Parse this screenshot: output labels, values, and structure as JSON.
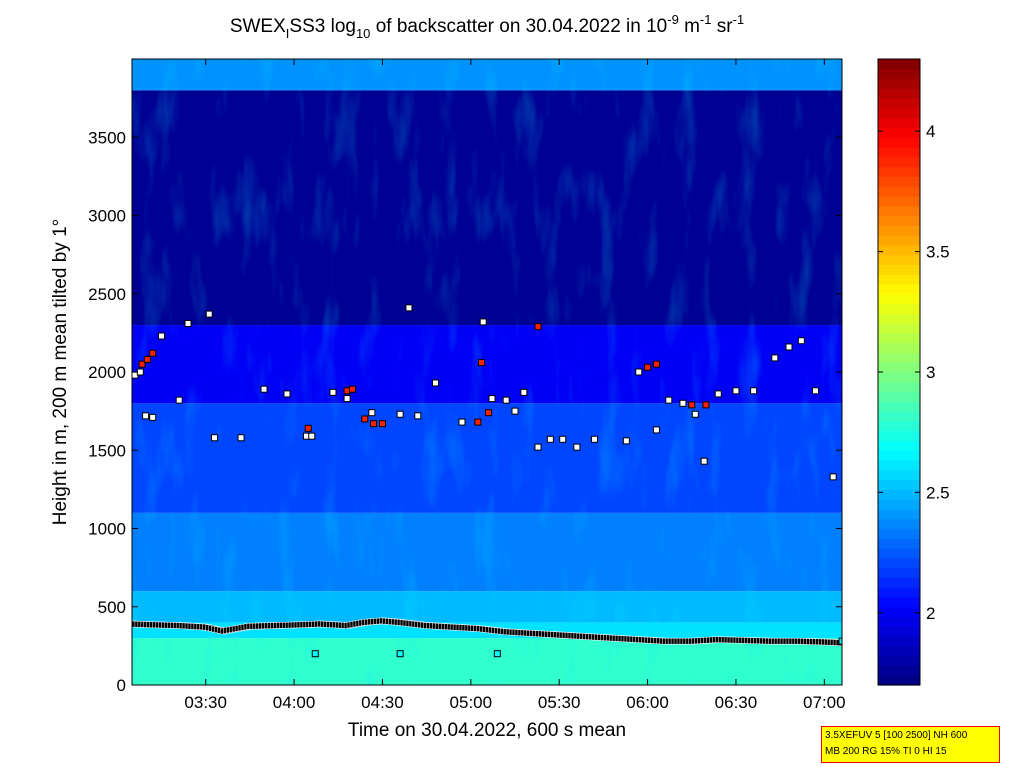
{
  "chart_data": {
    "type": "heatmap",
    "title": {
      "p1": "SWEX",
      "sub1": "I",
      "p2": "SS3 log",
      "sub2": "10",
      "p3": " of backscatter on 30.04.2022 in 10",
      "sup1": "-9",
      "p4": " m",
      "sup2": "-1",
      "p5": " sr",
      "sup3": "-1"
    },
    "xlabel": "Time on 30.04.2022, 600 s mean",
    "ylabel": "Height in m, 200 m mean tilted by 1°",
    "x_ticks": [
      "03:30",
      "04:00",
      "04:30",
      "05:00",
      "05:30",
      "06:00",
      "06:30",
      "07:00"
    ],
    "x_tick_hours": [
      3.5,
      4.0,
      4.5,
      5.0,
      5.5,
      6.0,
      6.5,
      7.0
    ],
    "xlim_hours": [
      3.083,
      7.1
    ],
    "y_ticks": [
      "0",
      "500",
      "1000",
      "1500",
      "2000",
      "2500",
      "3000",
      "3500"
    ],
    "y_tick_values": [
      0,
      500,
      1000,
      1500,
      2000,
      2500,
      3000,
      3500
    ],
    "ylim": [
      0,
      4000
    ],
    "colorbar": {
      "ticks": [
        "2",
        "2.5",
        "3",
        "3.5",
        "4"
      ],
      "tick_values": [
        2,
        2.5,
        3,
        3.5,
        4
      ],
      "range": [
        1.7,
        4.3
      ],
      "colormap": "jet"
    },
    "field_levels": [
      {
        "height_range": [
          0,
          300
        ],
        "log_backscatter": 2.8
      },
      {
        "height_range": [
          300,
          400
        ],
        "log_backscatter": 2.6
      },
      {
        "height_range": [
          400,
          600
        ],
        "log_backscatter": 2.5
      },
      {
        "height_range": [
          600,
          1100
        ],
        "log_backscatter": 2.35
      },
      {
        "height_range": [
          1100,
          1800
        ],
        "log_backscatter": 2.2
      },
      {
        "height_range": [
          1800,
          2300
        ],
        "log_backscatter": 2.0
      },
      {
        "height_range": [
          2300,
          3800
        ],
        "log_backscatter": 1.75
      },
      {
        "height_range": [
          3800,
          4000
        ],
        "log_backscatter": 2.4
      }
    ],
    "series": [
      {
        "marker_color": "#000000",
        "x_hours": [
          3.083,
          3.2,
          3.35,
          3.5,
          3.6,
          3.75,
          3.9,
          4.05,
          4.15,
          4.3,
          4.4,
          4.5,
          4.6,
          4.75,
          4.9,
          5.05,
          5.2,
          5.35,
          5.5,
          5.65,
          5.8,
          5.95,
          6.1,
          6.25,
          6.4,
          6.55,
          6.7,
          6.85,
          7.0,
          7.1
        ],
        "y": [
          390,
          385,
          380,
          370,
          345,
          375,
          380,
          385,
          390,
          380,
          400,
          410,
          400,
          380,
          370,
          360,
          340,
          330,
          320,
          310,
          300,
          290,
          280,
          280,
          290,
          285,
          280,
          280,
          275,
          270
        ]
      },
      {
        "marker_color": "#ffffff",
        "x_hours": [
          3.1,
          3.13,
          3.16,
          3.2,
          3.25,
          3.35,
          3.4,
          3.52,
          3.55,
          3.7,
          3.83,
          3.96,
          4.07,
          4.1,
          4.22,
          4.3,
          4.44,
          4.6,
          4.65,
          4.7,
          4.8,
          4.95,
          5.07,
          5.12,
          5.2,
          5.25,
          5.3,
          5.38,
          5.45,
          5.52,
          5.6,
          5.7,
          5.88,
          5.95,
          6.05,
          6.12,
          6.2,
          6.27,
          6.32,
          6.4,
          6.5,
          6.6,
          6.72,
          6.8,
          6.87,
          6.95,
          7.05
        ],
        "y": [
          1980,
          2000,
          1720,
          1710,
          2230,
          1820,
          2310,
          2370,
          1580,
          1580,
          1890,
          1860,
          1590,
          1590,
          1870,
          1830,
          1740,
          1730,
          2410,
          1720,
          1930,
          1680,
          2320,
          1830,
          1820,
          1750,
          1870,
          1520,
          1570,
          1570,
          1520,
          1570,
          1560,
          2000,
          1630,
          1820,
          1800,
          1730,
          1430,
          1860,
          1880,
          1880,
          2090,
          2160,
          2200,
          1880,
          1330
        ]
      },
      {
        "marker_color": "#ff2000",
        "x_hours": [
          3.14,
          3.17,
          3.2,
          4.08,
          4.3,
          4.33,
          4.4,
          4.45,
          4.5,
          5.04,
          5.06,
          5.1,
          5.38,
          6.0,
          6.05,
          6.25,
          6.33
        ],
        "y": [
          2050,
          2080,
          2120,
          1640,
          1880,
          1890,
          1700,
          1670,
          1670,
          1680,
          2060,
          1740,
          2290,
          2030,
          2050,
          1790,
          1790
        ]
      },
      {
        "marker_color": "#00ffff",
        "x_hours": [
          4.12,
          4.6,
          5.15,
          7.1
        ],
        "y": [
          200,
          200,
          200,
          280
        ]
      }
    ]
  },
  "info_box": {
    "line1": "3.5XEFUV 5 [100 2500] NH 600",
    "line2": "MB 200 RG 15% TI 0 HI 15"
  }
}
